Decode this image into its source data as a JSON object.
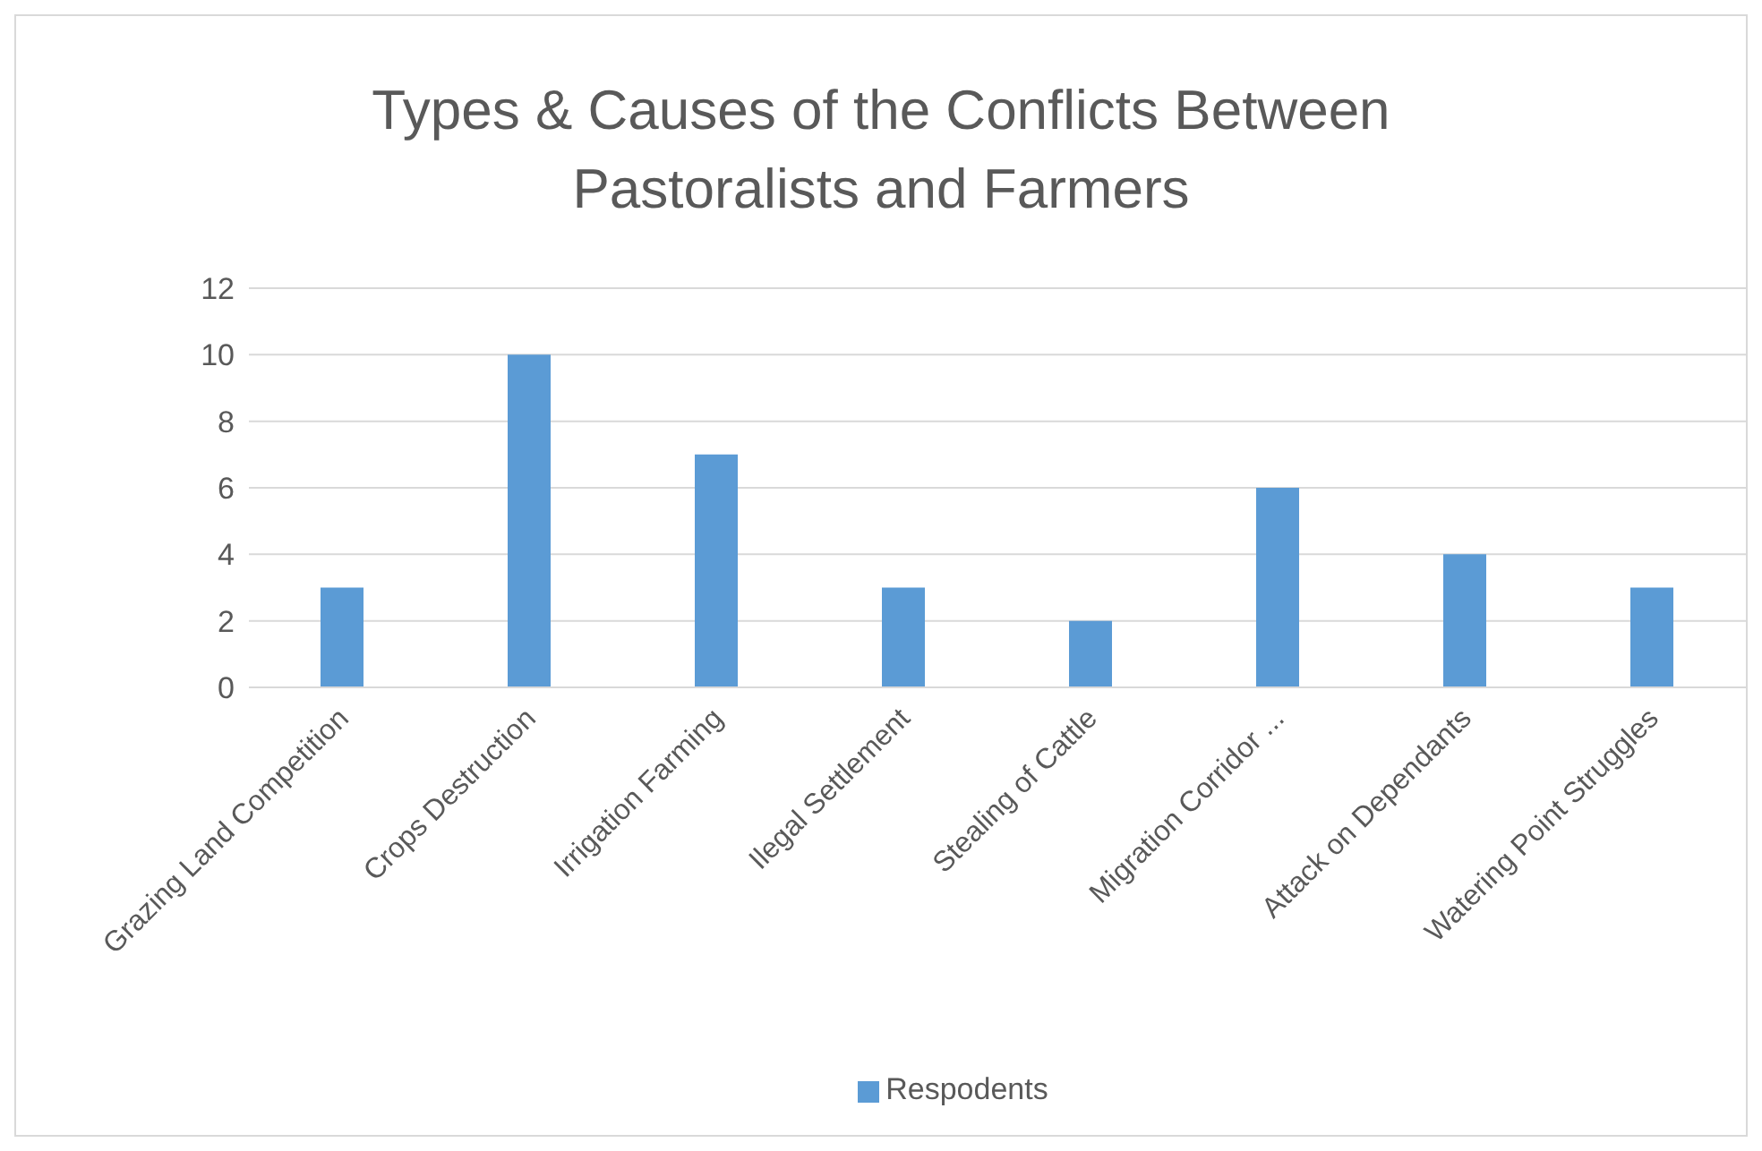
{
  "chart_data": {
    "type": "bar",
    "title": "Types & Causes of the Conflicts Between Pastoralists and Farmers",
    "categories": [
      "Grazing Land Competition",
      "Crops Destruction",
      "Irrigation Farming",
      "Ilegal Settlement",
      "Stealing of Cattle",
      "Migration Corridor ...",
      "Attack on Dependants",
      "Watering Point Struggles"
    ],
    "series": [
      {
        "name": "Respodents",
        "color": "#5b9bd5",
        "values": [
          3,
          10,
          7,
          3,
          2,
          6,
          4,
          3
        ]
      }
    ],
    "ylim": [
      0,
      12
    ],
    "yticks": [
      0,
      2,
      4,
      6,
      8,
      10,
      12
    ],
    "grid": "y",
    "legend": "bottom"
  }
}
